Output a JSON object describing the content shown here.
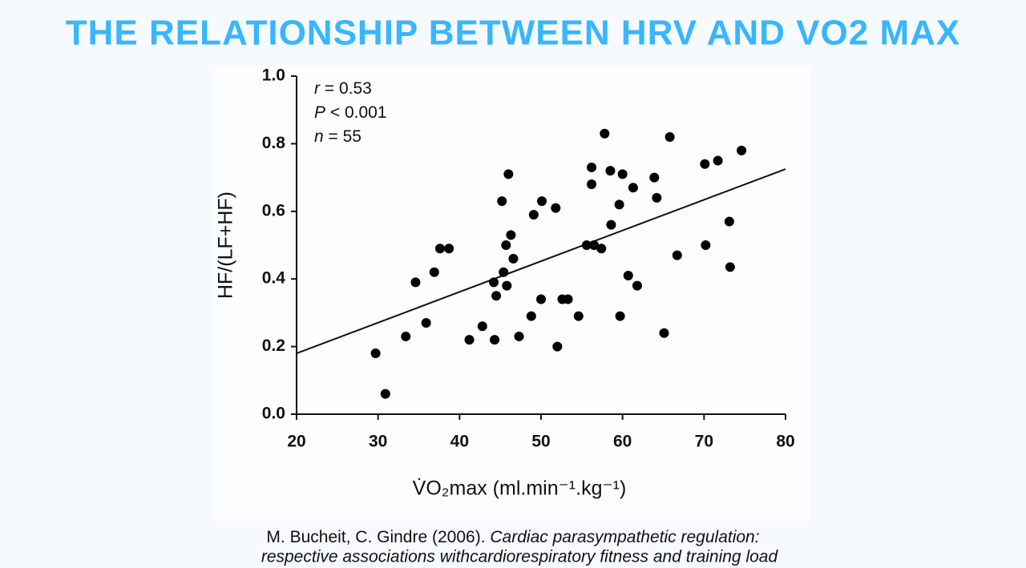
{
  "header": {
    "title": "THE RELATIONSHIP BETWEEN HRV AND VO2 MAX"
  },
  "chart_data": {
    "type": "scatter",
    "x_label": "V̇O₂max (ml.min⁻¹.kg⁻¹)",
    "y_label": "HF/(LF+HF)",
    "annotations": [
      {
        "symbol": "r",
        "text": "= 0.53"
      },
      {
        "symbol": "P",
        "text": "< 0.001"
      },
      {
        "symbol": "n",
        "text": "= 55"
      }
    ],
    "x": [
      29.7,
      30.9,
      33.4,
      34.6,
      35.9,
      36.9,
      37.6,
      38.7,
      41.2,
      42.8,
      44.2,
      44.3,
      44.5,
      45.2,
      45.4,
      45.7,
      45.8,
      46.0,
      46.3,
      46.6,
      47.3,
      48.8,
      49.1,
      50.0,
      50.1,
      51.8,
      52.0,
      52.6,
      53.3,
      54.6,
      55.6,
      56.2,
      56.2,
      56.5,
      57.4,
      57.8,
      58.5,
      58.6,
      59.6,
      59.7,
      60.0,
      60.7,
      61.3,
      61.8,
      63.9,
      64.2,
      65.1,
      65.8,
      66.7,
      70.1,
      70.2,
      71.7,
      73.1,
      73.2,
      74.6
    ],
    "values": [
      0.18,
      0.06,
      0.23,
      0.39,
      0.27,
      0.42,
      0.49,
      0.49,
      0.22,
      0.26,
      0.39,
      0.22,
      0.35,
      0.63,
      0.42,
      0.5,
      0.38,
      0.71,
      0.53,
      0.46,
      0.23,
      0.29,
      0.59,
      0.34,
      0.63,
      0.61,
      0.2,
      0.34,
      0.34,
      0.29,
      0.5,
      0.68,
      0.73,
      0.5,
      0.49,
      0.83,
      0.72,
      0.56,
      0.62,
      0.29,
      0.71,
      0.41,
      0.67,
      0.38,
      0.7,
      0.64,
      0.24,
      0.82,
      0.47,
      0.74,
      0.5,
      0.75,
      0.57,
      0.435,
      0.78
    ],
    "color": "#000000",
    "trendline": {
      "x": [
        20,
        80
      ],
      "values": [
        0.18,
        0.725
      ]
    },
    "xlim": [
      20,
      80
    ],
    "xticks": [
      20,
      30,
      40,
      50,
      60,
      70,
      80
    ],
    "ylim": [
      0,
      1
    ],
    "yticks": [
      {
        "value": 0,
        "label": "0.0"
      },
      {
        "value": 0.2,
        "label": "0.2"
      },
      {
        "value": 0.4,
        "label": "0.4"
      },
      {
        "value": 0.6,
        "label": "0.6"
      },
      {
        "value": 0.8,
        "label": "0.8"
      },
      {
        "value": 1,
        "label": "1.0"
      }
    ],
    "grid": false
  },
  "citation": {
    "authors": "M. Bucheit, C. Gindre (2006).",
    "title_lines": [
      "Cardiac parasympathetic regulation:",
      "respective associations withcardiorespiratory fitness and training load"
    ]
  }
}
